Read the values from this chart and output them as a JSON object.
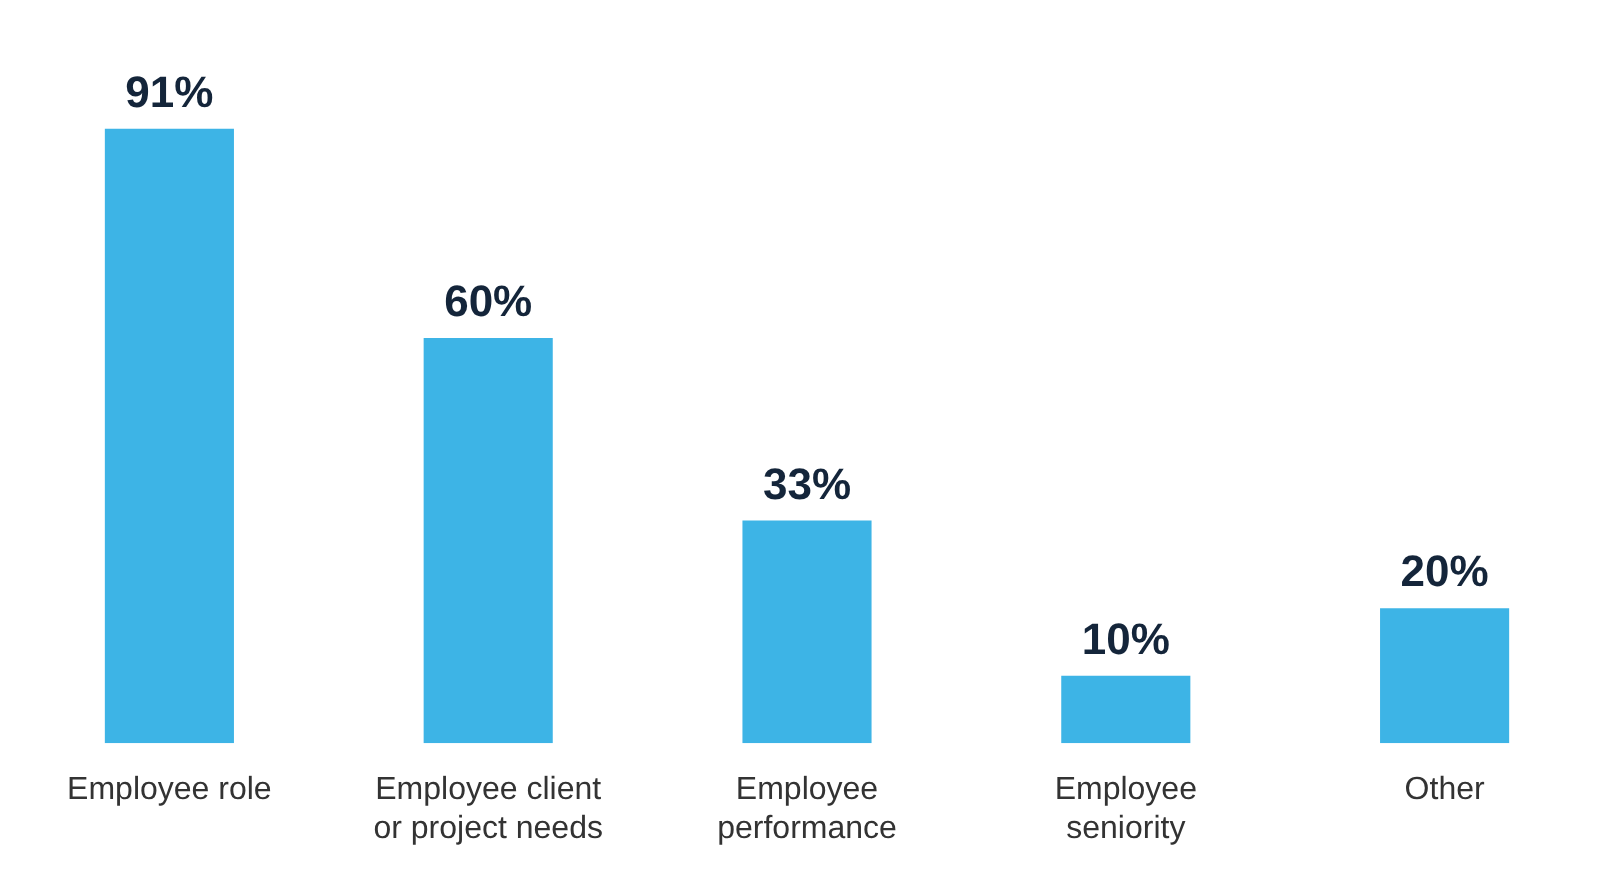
{
  "chart_data": {
    "type": "bar",
    "categories": [
      "Employee role",
      "Employee client or project needs",
      "Employee performance",
      "Employee seniority",
      "Other"
    ],
    "values": [
      91,
      60,
      33,
      10,
      20
    ],
    "color": "#3db4e6",
    "value_labels": [
      "91%",
      "60%",
      "33%",
      "10%",
      "20%"
    ],
    "grid": false,
    "legend": false
  }
}
